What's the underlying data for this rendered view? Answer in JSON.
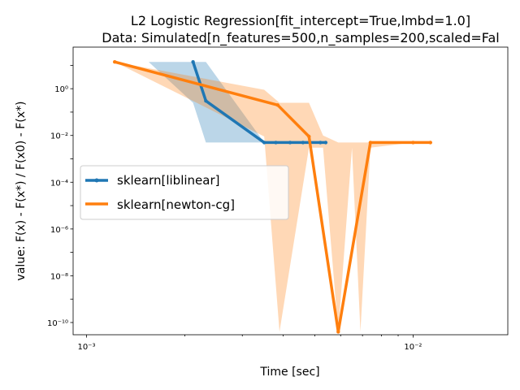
{
  "chart_data": {
    "type": "line",
    "title": "L2 Logistic Regression[fit_intercept=True,lmbd=1.0]",
    "subtitle": "Data: Simulated[n_features=500,n_samples=200,scaled=Fal",
    "xlabel": "Time [sec]",
    "ylabel": "value: F(x) - F(x*) / F(x0) - F(x*)",
    "xscale": "log",
    "yscale": "log",
    "xlim": [
      0.00091,
      0.0195
    ],
    "ylim": [
      3e-11,
      60
    ],
    "grid": false,
    "legend_position": "center-left",
    "x_ticks": [
      {
        "value": 0.001,
        "label": "10⁻³"
      },
      {
        "value": 0.01,
        "label": "10⁻²"
      }
    ],
    "y_ticks": [
      {
        "value": 1,
        "label": "10⁰"
      },
      {
        "value": 0.01,
        "label": "10⁻²"
      },
      {
        "value": 0.0001,
        "label": "10⁻⁴"
      },
      {
        "value": 1e-06,
        "label": "10⁻⁶"
      },
      {
        "value": 1e-08,
        "label": "10⁻⁸"
      },
      {
        "value": 1e-10,
        "label": "10⁻¹⁰"
      }
    ],
    "series": [
      {
        "name": "sklearn[liblinear]",
        "color": "#1f77b4",
        "x": [
          0.00212,
          0.00232,
          0.0035,
          0.0038,
          0.0042,
          0.0046,
          0.0052,
          0.0054
        ],
        "y": [
          14,
          0.3,
          0.005,
          0.005,
          0.005,
          0.005,
          0.005,
          0.005
        ],
        "band_x": [
          0.00155,
          0.00212,
          0.00232,
          0.0035,
          0.0038,
          0.0042,
          0.0046,
          0.0052,
          0.0058
        ],
        "band_upper": [
          14,
          14,
          14,
          0.005,
          0.005,
          0.005,
          0.005,
          0.005,
          0.005
        ],
        "band_lower": [
          14,
          0.25,
          0.005,
          0.005,
          0.005,
          0.005,
          0.005,
          0.005,
          0.005
        ]
      },
      {
        "name": "sklearn[newton-cg]",
        "color": "#ff7f0e",
        "x": [
          0.00122,
          0.00385,
          0.0048,
          0.0059,
          0.0074,
          0.01,
          0.0113
        ],
        "y": [
          14,
          0.2,
          0.009,
          4e-11,
          0.005,
          0.005,
          0.005
        ],
        "band_x": [
          0.00108,
          0.00122,
          0.0035,
          0.0039,
          0.0048,
          0.0053,
          0.0059,
          0.0065,
          0.0069,
          0.0074,
          0.01,
          0.0113,
          0.0175
        ],
        "band_upper": [
          14,
          14,
          0.9,
          0.25,
          0.25,
          0.01,
          0.005,
          0.005,
          0.005,
          0.005,
          0.005,
          0.005,
          0.005
        ],
        "band_lower": [
          14,
          14,
          0.009,
          4e-11,
          0.003,
          0.003,
          4e-11,
          0.003,
          4e-11,
          0.003,
          0.005,
          0.005,
          0.005
        ]
      }
    ]
  }
}
